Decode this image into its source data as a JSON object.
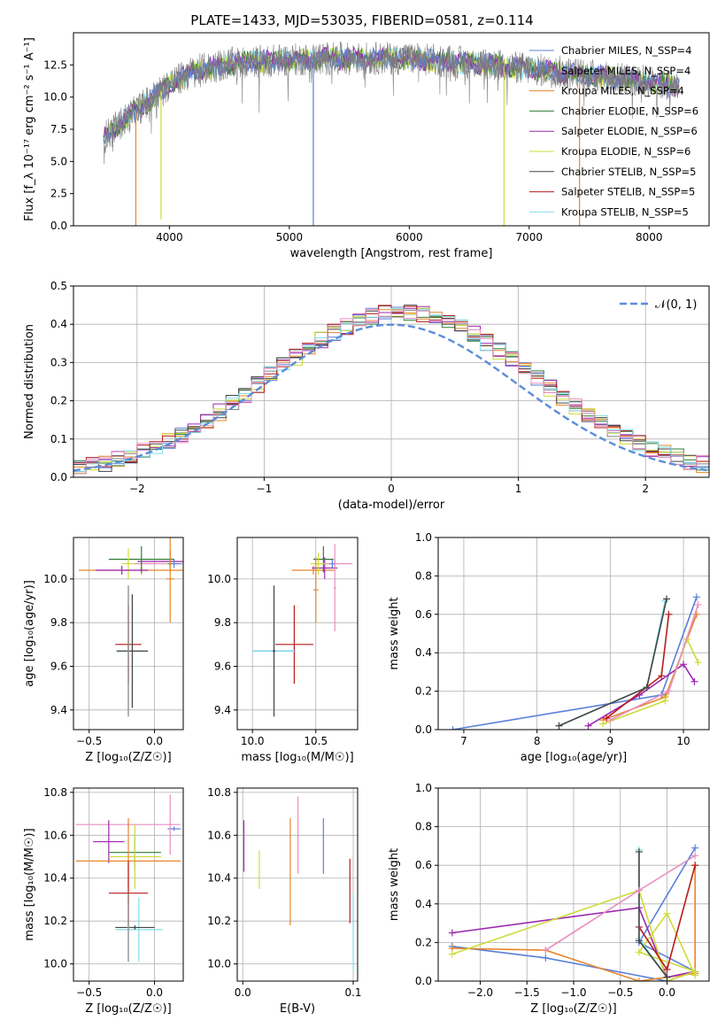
{
  "title": "PLATE=1433, MJD=53035, FIBERID=0581, z=0.114",
  "colors": {
    "chabrier_miles": "#5b7fd9",
    "salpeter_miles": "#7f7f7f",
    "kroupa_miles": "#e8862a",
    "chabrier_elodie": "#2e7d32",
    "salpeter_elodie": "#9c27b0",
    "kroupa_elodie": "#cddc39",
    "chabrier_stelib": "#444444",
    "salpeter_stelib": "#b71c1c",
    "kroupa_stelib": "#80deea",
    "pink": "#e88fc0",
    "normal_curve": "#5b8dd9"
  },
  "chart_data": [
    {
      "id": "spectrum",
      "type": "line",
      "title": "PLATE=1433, MJD=53035, FIBERID=0581, z=0.114",
      "xlabel": "wavelength [Angstrom, rest frame]",
      "ylabel": "Flux [f_λ 10⁻¹⁷ erg cm⁻² s⁻¹ A⁻¹]",
      "xlim": [
        3200,
        8500
      ],
      "ylim": [
        0,
        15
      ],
      "xticks": [
        4000,
        5000,
        6000,
        7000,
        8000
      ],
      "yticks": [
        0.0,
        2.5,
        5.0,
        7.5,
        10.0,
        12.5
      ],
      "ytick_labels": [
        "0.0",
        "2.5",
        "5.0",
        "7.5",
        "10.0",
        "12.5"
      ],
      "grid": false,
      "legend_position": "upper-right",
      "legend": [
        "Chabrier MILES, N_SSP=4",
        "Salpeter MILES, N_SSP=4",
        "Kroupa MILES, N_SSP=4",
        "Chabrier ELODIE, N_SSP=6",
        "Salpeter ELODIE, N_SSP=6",
        "Kroupa ELODIE, N_SSP=6",
        "Chabrier STELIB, N_SSP=5",
        "Salpeter STELIB, N_SSP=5",
        "Kroupa STELIB, N_SSP=5"
      ],
      "continuum": {
        "x": [
          3450,
          3600,
          3800,
          4000,
          4200,
          4500,
          4800,
          5000,
          5300,
          5600,
          6000,
          6300,
          6600,
          7000,
          7300,
          7600,
          8000,
          8250
        ],
        "y": [
          6.8,
          8.0,
          9.5,
          11.0,
          12.0,
          12.6,
          12.8,
          12.9,
          13.0,
          13.0,
          13.0,
          12.8,
          12.6,
          12.2,
          11.9,
          11.6,
          11.2,
          10.8
        ]
      },
      "dips": [
        {
          "x": 3720,
          "y": 0
        },
        {
          "x": 3930,
          "y": 0.5
        },
        {
          "x": 5200,
          "y": 0
        },
        {
          "x": 6790,
          "y": 0
        },
        {
          "x": 7420,
          "y": 0
        }
      ]
    },
    {
      "id": "residuals",
      "type": "histogram",
      "xlabel": "(data-model)/error",
      "ylabel": "Normed distribution",
      "xlim": [
        -2.5,
        2.5
      ],
      "ylim": [
        0,
        0.5
      ],
      "xticks": [
        -2,
        -1,
        0,
        1,
        2
      ],
      "xtick_labels": [
        "−2",
        "−1",
        "0",
        "1",
        "2"
      ],
      "yticks": [
        0.0,
        0.1,
        0.2,
        0.3,
        0.4,
        0.5
      ],
      "ytick_labels": [
        "0.0",
        "0.1",
        "0.2",
        "0.3",
        "0.4",
        "0.5"
      ],
      "grid": true,
      "legend_position": "upper-right",
      "curve_label": "𝒩(0, 1)",
      "bin_width": 0.1
    },
    {
      "id": "age_vs_Z",
      "type": "errorbar",
      "xlabel": "Z [log₁₀(Z/Z☉)]",
      "ylabel": "age  [log₁₀(age/yr)]",
      "xlim": [
        -0.62,
        0.22
      ],
      "ylim": [
        9.31,
        10.19
      ],
      "xticks": [
        -0.5,
        0.0
      ],
      "xtick_labels": [
        "−0.5",
        "0.0"
      ],
      "yticks": [
        9.4,
        9.6,
        9.8,
        10.0
      ],
      "ytick_labels": [
        "9.4",
        "9.6",
        "9.8",
        "10.0"
      ],
      "grid": true,
      "points": [
        {
          "c": "kroupa_miles",
          "x": -0.1,
          "xe": 0.48,
          "y": 10.04,
          "ye": 0.02
        },
        {
          "c": "pink",
          "x": 0.12,
          "xe": 0.28,
          "y": 10.07,
          "ye": 0.02
        },
        {
          "c": "salpeter_elodie",
          "x": 0.12,
          "xe": 0.25,
          "y": 10.08,
          "ye": 0.05
        },
        {
          "c": "kroupa_elodie",
          "x": 0.12,
          "xe": 0.04,
          "y": 10.07,
          "ye": 0.04
        },
        {
          "c": "chabrier_miles",
          "x": 0.15,
          "xe": 0.05,
          "y": 10.07,
          "ye": 0.02
        },
        {
          "c": "chabrier_elodie",
          "x": -0.1,
          "xe": 0.25,
          "y": 10.09,
          "ye": 0.06
        },
        {
          "c": "kroupa_elodie",
          "x": -0.2,
          "xe": 0.05,
          "y": 10.07,
          "ye": 0.07
        },
        {
          "c": "salpeter_elodie",
          "x": -0.25,
          "xe": 0.2,
          "y": 10.04,
          "ye": 0.02
        },
        {
          "c": "kroupa_miles",
          "x": 0.12,
          "xe": 0.03,
          "y": 10.0,
          "ye": 0.2
        },
        {
          "c": "salpeter_stelib",
          "x": -0.2,
          "xe": 0.1,
          "y": 9.7,
          "ye": 0.18
        },
        {
          "c": "kroupa_stelib",
          "x": -0.17,
          "xe": 0.12,
          "y": 9.67,
          "ye": 0.26
        },
        {
          "c": "chabrier_stelib",
          "x": -0.17,
          "xe": 0.12,
          "y": 9.67,
          "ye": 0.26
        },
        {
          "c": "salpeter_miles",
          "x": -0.2,
          "xe": 0.01,
          "y": 9.67,
          "ye": 0.3
        }
      ]
    },
    {
      "id": "age_vs_mass",
      "type": "errorbar",
      "xlabel": "mass [log₁₀(M/M☉)]",
      "ylabel": "",
      "xlim": [
        9.88,
        10.83
      ],
      "ylim": [
        9.31,
        10.19
      ],
      "xticks": [
        10.0,
        10.5
      ],
      "xtick_labels": [
        "10.0",
        "10.5"
      ],
      "yticks": [
        9.4,
        9.6,
        9.8,
        10.0
      ],
      "ytick_labels": [
        "9.4",
        "9.6",
        "9.8",
        "10.0"
      ],
      "grid": true,
      "points": [
        {
          "c": "kroupa_miles",
          "x": 10.48,
          "xe": 0.17,
          "y": 10.04,
          "ye": 0.02
        },
        {
          "c": "pink",
          "x": 10.65,
          "xe": 0.14,
          "y": 10.07,
          "ye": 0.02
        },
        {
          "c": "salpeter_elodie",
          "x": 10.57,
          "xe": 0.1,
          "y": 10.05,
          "ye": 0.05
        },
        {
          "c": "chabrier_elodie",
          "x": 10.56,
          "xe": 0.08,
          "y": 10.09,
          "ye": 0.06
        },
        {
          "c": "kroupa_elodie",
          "x": 10.52,
          "xe": 0.06,
          "y": 10.07,
          "ye": 0.05
        },
        {
          "c": "chabrier_miles",
          "x": 10.63,
          "xe": 0.02,
          "y": 10.07,
          "ye": 0.02
        },
        {
          "c": "kroupa_miles",
          "x": 10.5,
          "xe": 0.02,
          "y": 9.95,
          "ye": 0.15
        },
        {
          "c": "pink",
          "x": 10.65,
          "xe": 0.01,
          "y": 9.96,
          "ye": 0.2
        },
        {
          "c": "salpeter_stelib",
          "x": 10.33,
          "xe": 0.15,
          "y": 9.7,
          "ye": 0.18
        },
        {
          "c": "chabrier_miles",
          "x": 10.17,
          "xe": 0.17,
          "y": 9.67,
          "ye": 0.01
        },
        {
          "c": "kroupa_stelib",
          "x": 10.17,
          "xe": 0.17,
          "y": 9.67,
          "ye": 0.26
        },
        {
          "c": "chabrier_stelib",
          "x": 10.17,
          "xe": 0.01,
          "y": 9.67,
          "ye": 0.3
        }
      ]
    },
    {
      "id": "weight_vs_age",
      "type": "line",
      "xlabel": "age  [log₁₀(age/yr)]",
      "ylabel": "mass weight",
      "xlim": [
        6.65,
        10.35
      ],
      "ylim": [
        0,
        1.0
      ],
      "xticks": [
        7,
        8,
        9,
        10
      ],
      "xtick_labels": [
        "7",
        "8",
        "9",
        "10"
      ],
      "yticks": [
        0.0,
        0.2,
        0.4,
        0.6,
        0.8,
        1.0
      ],
      "ytick_labels": [
        "0.0",
        "0.2",
        "0.4",
        "0.6",
        "0.8",
        "1.0"
      ],
      "grid": true,
      "series": [
        {
          "c": "chabrier_miles",
          "x": [
            6.85,
            9.7,
            10.18
          ],
          "y": [
            0.0,
            0.18,
            0.69
          ]
        },
        {
          "c": "kroupa_miles",
          "x": [
            8.9,
            9.75,
            10.18
          ],
          "y": [
            0.05,
            0.17,
            0.6
          ]
        },
        {
          "c": "salpeter_elodie",
          "x": [
            8.7,
            9.4,
            10.0,
            10.15
          ],
          "y": [
            0.02,
            0.18,
            0.34,
            0.25
          ]
        },
        {
          "c": "kroupa_elodie",
          "x": [
            8.9,
            9.75,
            10.05,
            10.2
          ],
          "y": [
            0.03,
            0.15,
            0.47,
            0.35
          ]
        },
        {
          "c": "salpeter_stelib",
          "x": [
            8.95,
            9.7,
            9.8
          ],
          "y": [
            0.06,
            0.28,
            0.6
          ]
        },
        {
          "c": "kroupa_stelib",
          "x": [
            8.3,
            9.5,
            9.75
          ],
          "y": [
            0.02,
            0.22,
            0.67
          ]
        },
        {
          "c": "chabrier_stelib",
          "x": [
            8.3,
            9.5,
            9.77
          ],
          "y": [
            0.02,
            0.22,
            0.68
          ]
        },
        {
          "c": "pink",
          "x": [
            9.0,
            9.8,
            10.2
          ],
          "y": [
            0.05,
            0.2,
            0.65
          ]
        }
      ]
    },
    {
      "id": "mass_vs_Z",
      "type": "errorbar",
      "xlabel": "Z [log₁₀(Z/Z☉)]",
      "ylabel": "mass [log₁₀(M/M☉)]",
      "xlim": [
        -0.62,
        0.22
      ],
      "ylim": [
        9.92,
        10.82
      ],
      "xticks": [
        -0.5,
        0.0
      ],
      "xtick_labels": [
        "−0.5",
        "0.0"
      ],
      "yticks": [
        10.0,
        10.2,
        10.4,
        10.6,
        10.8
      ],
      "ytick_labels": [
        "10.0",
        "10.2",
        "10.4",
        "10.6",
        "10.8"
      ],
      "grid": true,
      "points": [
        {
          "c": "pink",
          "x": -0.2,
          "xe": 0.4,
          "y": 10.65,
          "ye": 0.01
        },
        {
          "c": "chabrier_miles",
          "x": 0.15,
          "xe": 0.05,
          "y": 10.63,
          "ye": 0.01
        },
        {
          "c": "salpeter_elodie",
          "x": -0.35,
          "xe": 0.12,
          "y": 10.57,
          "ye": 0.1
        },
        {
          "c": "chabrier_elodie",
          "x": -0.15,
          "xe": 0.2,
          "y": 10.52,
          "ye": 0.08
        },
        {
          "c": "kroupa_elodie",
          "x": -0.15,
          "xe": 0.2,
          "y": 10.5,
          "ye": 0.15
        },
        {
          "c": "kroupa_miles",
          "x": -0.2,
          "xe": 0.4,
          "y": 10.48,
          "ye": 0.2
        },
        {
          "c": "pink",
          "x": 0.12,
          "xe": 0.01,
          "y": 10.65,
          "ye": 0.14
        },
        {
          "c": "salpeter_stelib",
          "x": -0.2,
          "xe": 0.15,
          "y": 10.33,
          "ye": 0.15
        },
        {
          "c": "kroupa_stelib",
          "x": -0.12,
          "xe": 0.18,
          "y": 10.16,
          "ye": 0.15
        },
        {
          "c": "chabrier_stelib",
          "x": -0.15,
          "xe": 0.15,
          "y": 10.17,
          "ye": 0.01
        },
        {
          "c": "salpeter_miles",
          "x": -0.2,
          "xe": 0.01,
          "y": 10.17,
          "ye": 0.16
        }
      ]
    },
    {
      "id": "mass_vs_ebv",
      "type": "errorbar",
      "xlabel": "E(B-V)",
      "ylabel": "",
      "xlim": [
        -0.005,
        0.104
      ],
      "ylim": [
        9.92,
        10.82
      ],
      "xticks": [
        0.0,
        0.1
      ],
      "xtick_labels": [
        "0.0",
        "0.1"
      ],
      "yticks": [
        10.0,
        10.2,
        10.4,
        10.6,
        10.8
      ],
      "ytick_labels": [
        "10.0",
        "10.2",
        "10.4",
        "10.6",
        "10.8"
      ],
      "grid": true,
      "points": [
        {
          "c": "salpeter_elodie",
          "x": 0.001,
          "xe": 0,
          "y": 10.55,
          "ye": 0.12
        },
        {
          "c": "kroupa_elodie",
          "x": 0.015,
          "xe": 0,
          "y": 10.44,
          "ye": 0.09
        },
        {
          "c": "kroupa_miles",
          "x": 0.043,
          "xe": 0,
          "y": 10.43,
          "ye": 0.25
        },
        {
          "c": "pink",
          "x": 0.05,
          "xe": 0,
          "y": 10.6,
          "ye": 0.18
        },
        {
          "c": "chabrier_miles",
          "x": 0.073,
          "xe": 0,
          "y": 10.55,
          "ye": 0.13
        },
        {
          "c": "salpeter_stelib",
          "x": 0.097,
          "xe": 0,
          "y": 10.34,
          "ye": 0.15
        },
        {
          "c": "kroupa_stelib",
          "x": 0.1,
          "xe": 0,
          "y": 10.15,
          "ye": 0.18
        }
      ]
    },
    {
      "id": "weight_vs_Z",
      "type": "line",
      "xlabel": "Z [log₁₀(Z/Z☉)]",
      "ylabel": "mass weight",
      "xlim": [
        -2.45,
        0.45
      ],
      "ylim": [
        0,
        1.0
      ],
      "xticks": [
        -2.0,
        -1.5,
        -1.0,
        -0.5,
        0.0
      ],
      "xtick_labels": [
        "−2.0",
        "−1.5",
        "−1.0",
        "−0.5",
        "0.0"
      ],
      "yticks": [
        0.0,
        0.2,
        0.4,
        0.6,
        0.8,
        1.0
      ],
      "ytick_labels": [
        "0.0",
        "0.2",
        "0.4",
        "0.6",
        "0.8",
        "1.0"
      ],
      "grid": true,
      "series": [
        {
          "c": "chabrier_miles",
          "x": [
            -2.3,
            -1.3,
            0.0,
            0.3,
            -0.3,
            0.3
          ],
          "y": [
            0.18,
            0.12,
            0.0,
            0.05,
            0.2,
            0.69
          ]
        },
        {
          "c": "kroupa_miles",
          "x": [
            -2.3,
            -1.3,
            -0.3,
            0.3,
            0.3
          ],
          "y": [
            0.17,
            0.16,
            0.0,
            0.04,
            0.6
          ]
        },
        {
          "c": "salpeter_elodie",
          "x": [
            -2.3,
            -0.3,
            0.0,
            0.3
          ],
          "y": [
            0.25,
            0.38,
            0.02,
            0.05
          ]
        },
        {
          "c": "kroupa_elodie",
          "x": [
            -2.3,
            -0.3,
            0.0,
            0.3,
            -0.3,
            0.0,
            0.3
          ],
          "y": [
            0.14,
            0.47,
            0.0,
            0.05,
            0.15,
            0.35,
            0.03
          ]
        },
        {
          "c": "salpeter_stelib",
          "x": [
            -0.3,
            0.0,
            0.3
          ],
          "y": [
            0.28,
            0.06,
            0.6
          ]
        },
        {
          "c": "kroupa_stelib",
          "x": [
            -0.3,
            -0.3,
            0.0
          ],
          "y": [
            0.68,
            0.22,
            0.02
          ]
        },
        {
          "c": "chabrier_stelib",
          "x": [
            -0.3,
            -0.3,
            0.0
          ],
          "y": [
            0.67,
            0.21,
            0.02
          ]
        },
        {
          "c": "pink",
          "x": [
            -1.3,
            -0.3,
            0.3
          ],
          "y": [
            0.16,
            0.47,
            0.65
          ]
        }
      ]
    }
  ]
}
